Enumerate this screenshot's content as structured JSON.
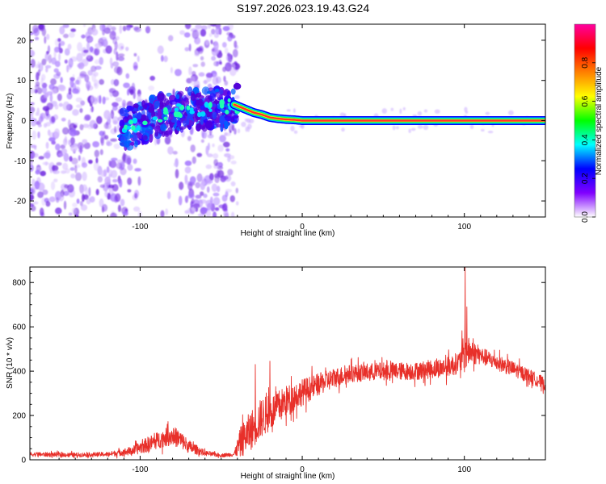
{
  "title": "S197.2026.023.19.43.G24",
  "chart_data": [
    {
      "type": "heatmap",
      "name": "spectrogram",
      "xlabel": "Height of straight line (km)",
      "ylabel": "Frequency (Hz)",
      "xlim": [
        -168,
        150
      ],
      "ylim": [
        -24,
        24
      ],
      "xticks": [
        -100,
        0,
        100
      ],
      "yticks": [
        -20,
        -10,
        0,
        10,
        20
      ],
      "colorbar": {
        "label": "Normalized spectral amplitude",
        "ticks": [
          "0.0",
          "0.2",
          "0.4",
          "0.6",
          "0.8"
        ],
        "range": [
          0,
          1
        ],
        "colors": [
          "#ffffff",
          "#8000ff",
          "#0000ff",
          "#00ffff",
          "#00ff00",
          "#ffff00",
          "#ff8000",
          "#ff0000",
          "#ff00a0"
        ]
      },
      "ridge": {
        "x": [
          -112,
          -100,
          -90,
          -80,
          -70,
          -60,
          -50,
          -42,
          -36,
          -30,
          -25,
          -20,
          -15,
          -10,
          -5,
          0,
          10,
          20,
          50,
          80,
          100,
          120,
          150
        ],
        "freq": [
          -2,
          -1,
          1,
          2,
          3,
          3,
          3,
          4,
          3,
          2,
          1.5,
          0.8,
          0.5,
          0.3,
          0.2,
          0,
          0,
          0,
          0,
          0,
          0,
          0,
          0
        ]
      },
      "noise_region_x": [
        -168,
        -40
      ],
      "gap_region_x": [
        -100,
        -72
      ]
    },
    {
      "type": "line",
      "name": "snr",
      "xlabel": "Height of straight line (km)",
      "ylabel": "SNR (10 * v/v)",
      "xlim": [
        -168,
        150
      ],
      "ylim": [
        0,
        870
      ],
      "xticks": [
        -100,
        0,
        100
      ],
      "yticks": [
        0,
        200,
        400,
        600,
        800
      ],
      "color": "#e8302a",
      "envelope": {
        "x": [
          -168,
          -140,
          -120,
          -105,
          -95,
          -85,
          -80,
          -75,
          -70,
          -60,
          -50,
          -42,
          -38,
          -32,
          -25,
          -18,
          -10,
          0,
          10,
          20,
          30,
          50,
          70,
          90,
          97,
          100,
          103,
          110,
          120,
          130,
          140,
          150
        ],
        "mean": [
          25,
          22,
          25,
          40,
          70,
          100,
          110,
          90,
          60,
          30,
          20,
          25,
          80,
          130,
          190,
          220,
          265,
          305,
          340,
          370,
          390,
          400,
          400,
          420,
          440,
          480,
          490,
          470,
          440,
          410,
          380,
          340
        ],
        "amp": [
          10,
          10,
          10,
          20,
          35,
          40,
          45,
          40,
          30,
          12,
          8,
          10,
          70,
          90,
          90,
          80,
          70,
          60,
          50,
          45,
          40,
          40,
          40,
          45,
          50,
          90,
          60,
          40,
          35,
          35,
          30,
          30
        ]
      },
      "spikes": [
        {
          "x": -29,
          "value": 430
        },
        {
          "x": -20,
          "value": 445
        },
        {
          "x": 100.5,
          "value": 870
        },
        {
          "x": 101.5,
          "value": 690
        }
      ]
    }
  ]
}
